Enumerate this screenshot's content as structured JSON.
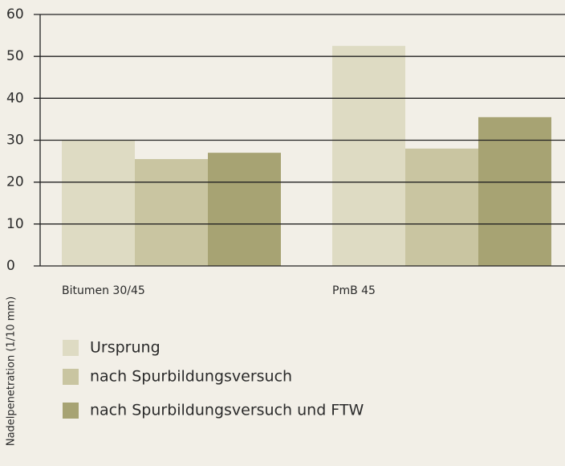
{
  "chart_data": {
    "type": "bar",
    "y_label": "Nadelpenetration (1/10 mm)",
    "categories": [
      "Bitumen 30/45",
      "PmB 45"
    ],
    "series": [
      {
        "name": "Ursprung",
        "color": "#dedbc3",
        "values": [
          30,
          52.5
        ]
      },
      {
        "name": "nach Spurbildungsversuch",
        "color": "#c9c5a1",
        "values": [
          25.5,
          28
        ]
      },
      {
        "name": "nach Spurbildungsversuch und FTW",
        "color": "#a7a373",
        "values": [
          27,
          35.5
        ]
      }
    ],
    "ylim": [
      0,
      60
    ],
    "yticks": [
      0,
      10,
      20,
      30,
      40,
      50,
      60
    ],
    "grid": true
  }
}
